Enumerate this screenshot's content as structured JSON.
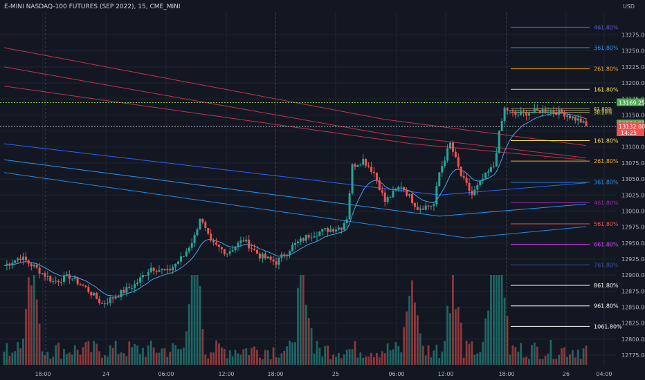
{
  "header": {
    "title": "E-MINI NASDAQ-100 FUTURES (SEP 2022), 15, CME_MINI"
  },
  "currency": "USD",
  "colors": {
    "bg": "#131722",
    "up": "#26a69a",
    "down": "#ef5350",
    "grid": "#1f2430"
  },
  "badges": {
    "high": {
      "value": "13169.25",
      "color": "#4caf50"
    },
    "mid": {
      "value": "13136.25",
      "color": "#4caf50"
    },
    "last": {
      "value": "13132.00",
      "countdown": "14:25",
      "color": "#ef5350"
    }
  },
  "chart_data": {
    "type": "candlestick",
    "ylim": [
      12760,
      13310
    ],
    "y_ticks": [
      12775,
      12800,
      12825,
      12850,
      12875,
      12900,
      12925,
      12950,
      12975,
      13000,
      13025,
      13050,
      13075,
      13100,
      13125,
      13150,
      13175,
      13200,
      13225,
      13250,
      13275
    ],
    "x_labels": [
      "18:00",
      "24",
      "06:00",
      "12:00",
      "18:00",
      "25",
      "06:00",
      "12:00",
      "18:00",
      "26",
      "04:00"
    ],
    "fib_levels": [
      {
        "label": "461.80%",
        "value": 13287,
        "color": "#5b5bd6"
      },
      {
        "label": "361.80%",
        "value": 13255,
        "color": "#2196f3"
      },
      {
        "label": "261.80%",
        "value": 13222,
        "color": "#f5a623"
      },
      {
        "label": "161.80%",
        "value": 13190,
        "color": "#f4e04d"
      },
      {
        "label": "161.80%",
        "value": 13110,
        "color": "#f4e04d"
      },
      {
        "label": "261.80%",
        "value": 13078,
        "color": "#f5a623"
      },
      {
        "label": "361.80%",
        "value": 13045,
        "color": "#2196f3"
      },
      {
        "label": "461.80%",
        "value": 13013,
        "color": "#9c27b0"
      },
      {
        "label": "561.80%",
        "value": 12980,
        "color": "#ef5350"
      },
      {
        "label": "661.80%",
        "value": 12948,
        "color": "#e040fb"
      },
      {
        "label": "761.80%",
        "value": 12916,
        "color": "#3f51b5"
      },
      {
        "label": "861.80%",
        "value": 12884,
        "color": "#ffffff"
      },
      {
        "label": "961.80%",
        "value": 12852,
        "color": "#ffffff"
      },
      {
        "label": "1061.80%",
        "value": 12820,
        "color": "#ffffff"
      }
    ],
    "fib_top_labels": [
      "61.80%",
      "50.00%",
      "38.20%"
    ],
    "waypoints": [
      [
        0,
        12915
      ],
      [
        6,
        12928
      ],
      [
        12,
        12910
      ],
      [
        18,
        12890
      ],
      [
        24,
        12898
      ],
      [
        30,
        12880
      ],
      [
        36,
        12855
      ],
      [
        42,
        12870
      ],
      [
        48,
        12885
      ],
      [
        54,
        12912
      ],
      [
        60,
        12905
      ],
      [
        66,
        12930
      ],
      [
        70,
        12960
      ],
      [
        72,
        12990
      ],
      [
        76,
        12950
      ],
      [
        82,
        12935
      ],
      [
        88,
        12955
      ],
      [
        94,
        12930
      ],
      [
        100,
        12920
      ],
      [
        106,
        12945
      ],
      [
        112,
        12962
      ],
      [
        118,
        12970
      ],
      [
        124,
        12975
      ],
      [
        126,
        12990
      ],
      [
        128,
        13070
      ],
      [
        132,
        13080
      ],
      [
        136,
        13060
      ],
      [
        140,
        13015
      ],
      [
        146,
        13040
      ],
      [
        152,
        13005
      ],
      [
        158,
        13010
      ],
      [
        160,
        13060
      ],
      [
        164,
        13105
      ],
      [
        168,
        13055
      ],
      [
        172,
        13025
      ],
      [
        176,
        13050
      ],
      [
        180,
        13070
      ],
      [
        182,
        13120
      ],
      [
        184,
        13160
      ],
      [
        188,
        13150
      ],
      [
        194,
        13155
      ],
      [
        200,
        13158
      ],
      [
        206,
        13152
      ],
      [
        212,
        13140
      ],
      [
        214,
        13132
      ]
    ]
  }
}
